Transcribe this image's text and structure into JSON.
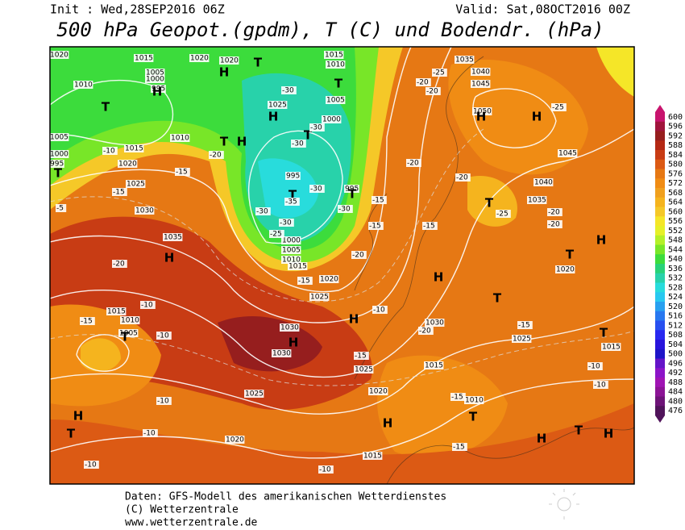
{
  "header": {
    "init": "Init : Wed,28SEP2016 06Z",
    "valid": "Valid: Sat,08OCT2016 00Z",
    "title": "500 hPa Geopot.(gpdm), T (C) und Bodendr. (hPa)"
  },
  "footer": [
    "Daten: GFS-Modell des amerikanischen Wetterdienstes",
    "(C) Wetterzentrale",
    "www.wetterzentrale.de"
  ],
  "colorbar": {
    "ticks": [
      600,
      596,
      592,
      588,
      584,
      580,
      576,
      572,
      568,
      564,
      560,
      556,
      552,
      548,
      544,
      540,
      536,
      532,
      528,
      524,
      520,
      516,
      512,
      508,
      504,
      500,
      496,
      492,
      488,
      484,
      480,
      476
    ],
    "colors": [
      "#c8146e",
      "#a0143c",
      "#961e1e",
      "#b42814",
      "#c83c14",
      "#dc5a14",
      "#e67814",
      "#f08c14",
      "#f0a01e",
      "#f5b41e",
      "#f5c828",
      "#f5e628",
      "#e6f028",
      "#b4f028",
      "#78e628",
      "#3cdc3c",
      "#28d278",
      "#28d2aa",
      "#28dcdc",
      "#28c8f0",
      "#28a0f0",
      "#2878f0",
      "#2850f0",
      "#2828f0",
      "#2814dc",
      "#1e14c8",
      "#6414c8",
      "#8c14c8",
      "#a014b4",
      "#8c1496",
      "#6e1478",
      "#50145a"
    ]
  },
  "map_labels": [
    "1020",
    "1015",
    "1020",
    "1020",
    "1015",
    "1010",
    "1005",
    "1000",
    "995",
    "1010",
    "1005",
    "1000",
    "995",
    "1015",
    "1020",
    "1025",
    "1030",
    "1035",
    "1010",
    "1025",
    "1005",
    "1000",
    "995",
    "995",
    "1000",
    "1005",
    "1010",
    "1015",
    "1020",
    "1025",
    "1030",
    "1030",
    "1025",
    "1020",
    "1025",
    "1020",
    "1015",
    "1015",
    "1010",
    "1030",
    "1035",
    "1040",
    "1045",
    "1050",
    "1045",
    "1040",
    "1035",
    "1020",
    "1025",
    "1015",
    "1015",
    "1010",
    "1005",
    "H",
    "T",
    "T",
    "T",
    "H",
    "H",
    "T",
    "H",
    "T",
    "T",
    "T",
    "T",
    "H",
    "H",
    "H",
    "T",
    "H",
    "T",
    "H",
    "T",
    "H",
    "H",
    "T",
    "T",
    "H",
    "T",
    "H",
    "T",
    "H",
    "T",
    "H",
    "-10",
    "-15",
    "-10",
    "-10",
    "-10",
    "-10",
    "-10",
    "-10",
    "-15",
    "-20",
    "-15",
    "-15",
    "-15",
    "-10",
    "-10",
    "-25",
    "-20",
    "-20",
    "-25",
    "-20",
    "-20",
    "-20",
    "-25",
    "-20",
    "-15",
    "-10",
    "-15",
    "-20",
    "-5",
    "-30",
    "-30",
    "-30",
    "-30",
    "-30",
    "-35",
    "-30",
    "-30",
    "-25",
    "-15",
    "-15",
    "-15",
    "-20",
    "-20",
    "-15"
  ]
}
